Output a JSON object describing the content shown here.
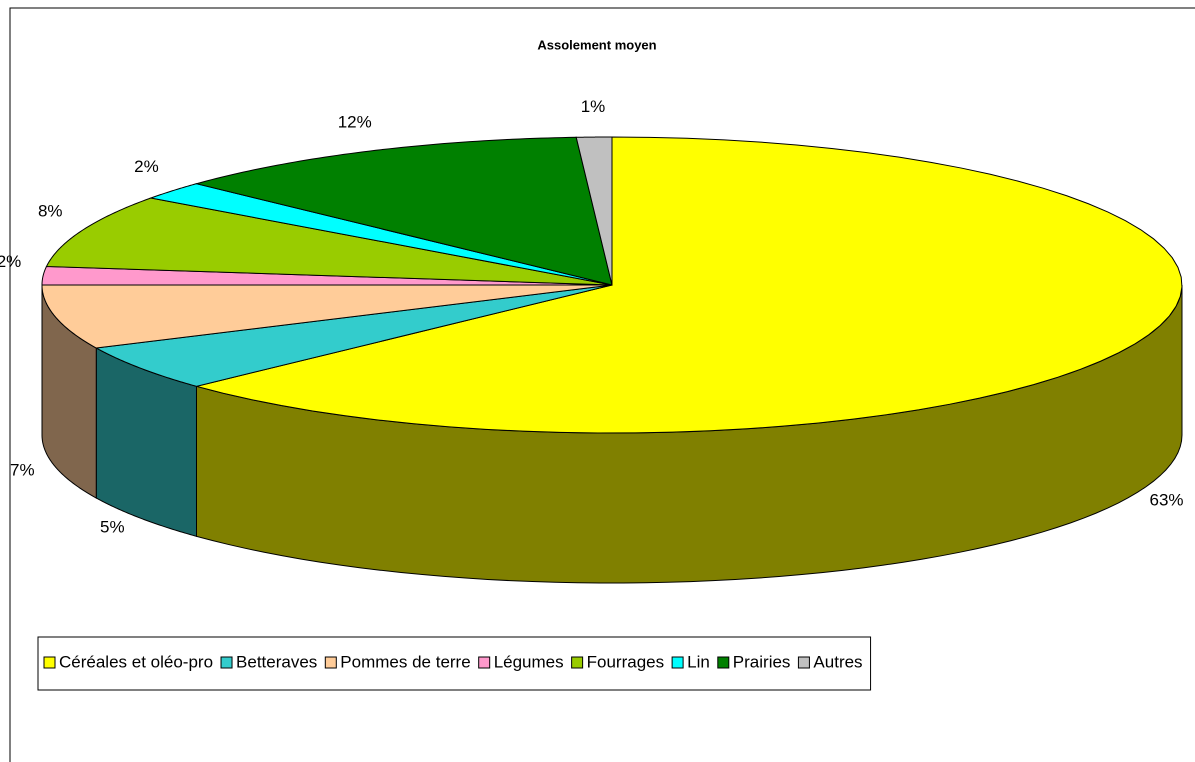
{
  "chart_data": {
    "type": "pie",
    "title": "Assolement moyen",
    "categories": [
      "Céréales et oléo-pro",
      "Betteraves",
      "Pommes de terre",
      "Légumes",
      "Fourrages",
      "Lin",
      "Prairies",
      "Autres"
    ],
    "values": [
      63,
      5,
      7,
      2,
      8,
      2,
      12,
      1
    ],
    "value_labels": [
      "63%",
      "5%",
      "7%",
      "2%",
      "8%",
      "2%",
      "12%",
      "1%"
    ],
    "colors": [
      "#ffff00",
      "#33cccc",
      "#ffcc99",
      "#ff99cc",
      "#99cc00",
      "#00ffff",
      "#008000",
      "#c0c0c0"
    ],
    "legend": "bottom"
  }
}
